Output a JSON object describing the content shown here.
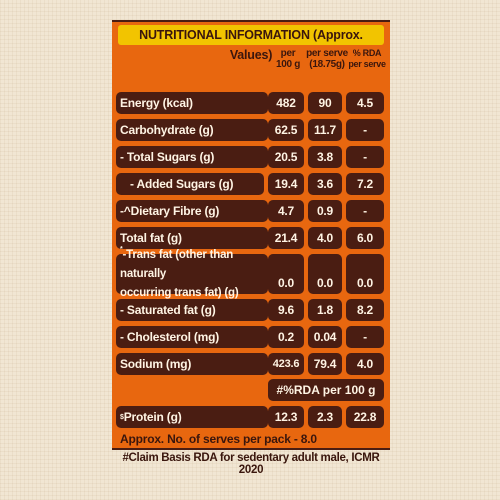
{
  "title": "NUTRITIONAL INFORMATION (Approx. Values)",
  "headers": {
    "per100_line1": "per",
    "per100_line2": "100 g",
    "serve_line1": "per serve",
    "serve_line2": "(18.75g)",
    "rda_line1": "% RDA",
    "rda_line2": "per serve"
  },
  "rows": [
    {
      "label": "Energy (kcal)",
      "per100": "482",
      "serve": "90",
      "rda": "4.5"
    },
    {
      "label": "Carbohydrate (g)",
      "per100": "62.5",
      "serve": "11.7",
      "rda": "-"
    },
    {
      "label": "- Total Sugars (g)",
      "per100": "20.5",
      "serve": "3.8",
      "rda": "-"
    },
    {
      "label": "- Added Sugars (g)",
      "per100": "19.4",
      "serve": "3.6",
      "rda": "7.2"
    },
    {
      "label": "-^Dietary Fibre (g)",
      "per100": "4.7",
      "serve": "0.9",
      "rda": "-"
    },
    {
      "label": "Total fat (g)",
      "per100": "21.4",
      "serve": "4.0",
      "rda": "6.0"
    },
    {
      "label_line1": "-Trans fat (other than naturally",
      "label_line2": "occurring trans fat) (g)",
      "label_mark": "*",
      "per100": "0.0",
      "serve": "0.0",
      "rda": "0.0"
    },
    {
      "label": "- Saturated fat (g)",
      "per100": "9.6",
      "serve": "1.8",
      "rda": "8.2"
    },
    {
      "label": "- Cholesterol (mg)",
      "per100": "0.2",
      "serve": "0.04",
      "rda": "-"
    },
    {
      "label": "Sodium (mg)",
      "per100": "423.6",
      "serve": "79.4",
      "rda": "4.0"
    }
  ],
  "rda_note": "#%RDA per 100 g",
  "protein": {
    "label": "Protein (g)",
    "label_mark": "$",
    "per100": "12.3",
    "serve": "2.3",
    "rda": "22.8"
  },
  "serves_note": "Approx. No. of serves per pack - 8.0",
  "footnote": "#Claim Basis RDA for sedentary adult male, ICMR 2020"
}
